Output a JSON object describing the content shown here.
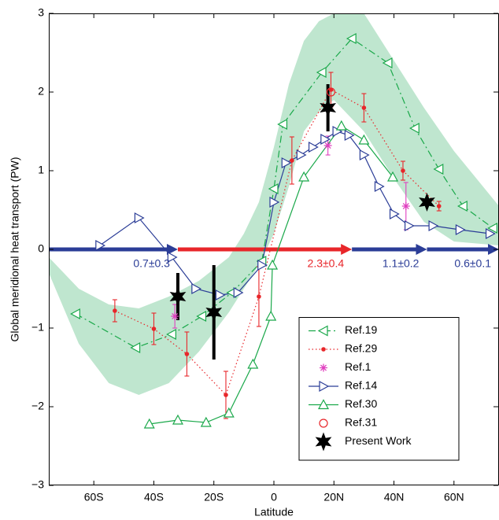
{
  "chart_data": {
    "type": "line",
    "xlabel": "Latitude",
    "ylabel": "Global meridional heat transport (PW)",
    "xlim": [
      -75,
      75
    ],
    "ylim": [
      -3,
      3
    ],
    "xticks": [
      {
        "value": -60,
        "label": "60S"
      },
      {
        "value": -40,
        "label": "40S"
      },
      {
        "value": -20,
        "label": "20S"
      },
      0,
      {
        "value": 20,
        "label": "20N"
      },
      {
        "value": 40,
        "label": "40N"
      },
      {
        "value": 60,
        "label": "60N"
      }
    ],
    "yticks": [
      {
        "value": -3,
        "label": "−3"
      },
      {
        "value": -2,
        "label": "−2"
      },
      {
        "value": -1,
        "label": "−1"
      },
      0,
      1,
      2,
      3
    ],
    "legend": "lower right",
    "band": {
      "color": "#bfe6cf",
      "x": [
        -75,
        -65,
        -55,
        -45,
        -35,
        -25,
        -15,
        -10,
        -5,
        0,
        5,
        10,
        15,
        20,
        30,
        40,
        50,
        60,
        75
      ],
      "upper": [
        -0.1,
        -0.5,
        -0.7,
        -0.75,
        -0.6,
        -0.4,
        -0.1,
        0.2,
        0.6,
        1.3,
        2.1,
        2.65,
        2.9,
        3.0,
        3.0,
        2.4,
        1.8,
        1.25,
        0.55
      ],
      "lower": [
        -0.3,
        -1.2,
        -1.7,
        -1.85,
        -1.7,
        -1.3,
        -0.8,
        -0.5,
        -0.2,
        0.2,
        0.8,
        1.5,
        1.75,
        1.9,
        1.5,
        0.9,
        0.35,
        0.1,
        0.05
      ]
    },
    "arrows": [
      {
        "from": -75,
        "to": -32,
        "label": "0.7±0.3",
        "color": "#2b3d97"
      },
      {
        "from": -32,
        "to": 26,
        "label": "2.3±0.4",
        "color": "#e8262a"
      },
      {
        "from": 26,
        "to": 51,
        "label": "1.1±0.2",
        "color": "#2b3d97"
      },
      {
        "from": 51,
        "to": 75,
        "label": "0.6±0.1",
        "color": "#2b3d97"
      }
    ],
    "series": [
      {
        "name": "Ref.19",
        "color": "#1aa84a",
        "line": "dashdot",
        "marker": "triangle-left",
        "x": [
          -66,
          -46,
          -34,
          -24,
          -14,
          -4,
          0,
          3,
          16,
          26,
          38,
          47,
          55,
          63,
          73
        ],
        "values": [
          -0.82,
          -1.25,
          -1.08,
          -0.85,
          -0.55,
          -0.15,
          0.77,
          1.59,
          2.25,
          2.68,
          2.37,
          1.54,
          1.02,
          0.55,
          0.27
        ]
      },
      {
        "name": "Ref.29",
        "color": "#e8262a",
        "line": "dotted",
        "marker": "dot",
        "x": [
          -53,
          -40,
          -29,
          -16,
          -5,
          6,
          19,
          30,
          43,
          55
        ],
        "values": [
          -0.78,
          -1.01,
          -1.33,
          -1.85,
          -0.6,
          1.13,
          2.03,
          1.8,
          1.0,
          0.55
        ],
        "errors": [
          0.14,
          0.2,
          0.28,
          0.3,
          0.38,
          0.3,
          0.22,
          0.18,
          0.12,
          0.06
        ]
      },
      {
        "name": "Ref.1",
        "color": "#e040c0",
        "line": "none",
        "marker": "asterisk",
        "x": [
          -33,
          18,
          44
        ],
        "values": [
          -0.85,
          1.32,
          0.55
        ],
        "errors": [
          0.15,
          0.12,
          0.3
        ]
      },
      {
        "name": "Ref.14",
        "color": "#2b3d97",
        "line": "solid",
        "marker": "triangle-right",
        "x": [
          -58,
          -45,
          -34,
          -26,
          -18,
          -12,
          -4,
          0,
          4,
          9,
          13,
          17,
          21,
          25,
          30,
          35,
          40,
          45,
          53,
          62,
          72
        ],
        "values": [
          0.05,
          0.4,
          -0.1,
          -0.5,
          -0.58,
          -0.55,
          -0.2,
          0.6,
          1.1,
          1.2,
          1.3,
          1.4,
          1.5,
          1.45,
          1.2,
          0.8,
          0.45,
          0.3,
          0.3,
          0.25,
          0.2
        ]
      },
      {
        "name": "Ref.30",
        "color": "#1aa84a",
        "line": "solid",
        "marker": "triangle-up",
        "x": [
          -41.5,
          -32,
          -22.6,
          -15,
          -7,
          -1,
          -0.5,
          10,
          22.5,
          30,
          39.6
        ],
        "values": [
          -2.22,
          -2.17,
          -2.2,
          -2.08,
          -1.46,
          -0.85,
          -0.2,
          0.92,
          1.57,
          1.39,
          0.92
        ]
      },
      {
        "name": "Ref.31",
        "color": "#e8262a",
        "line": "none",
        "marker": "circle",
        "x": [
          19
        ],
        "values": [
          2.0
        ]
      },
      {
        "name": "Present Work",
        "color": "#000000",
        "line": "none",
        "marker": "star",
        "x": [
          -32,
          -20,
          18,
          51
        ],
        "values": [
          -0.6,
          -0.8,
          1.8,
          0.6
        ],
        "errors": [
          0.3,
          0.6,
          0.3,
          0.05
        ]
      }
    ]
  }
}
